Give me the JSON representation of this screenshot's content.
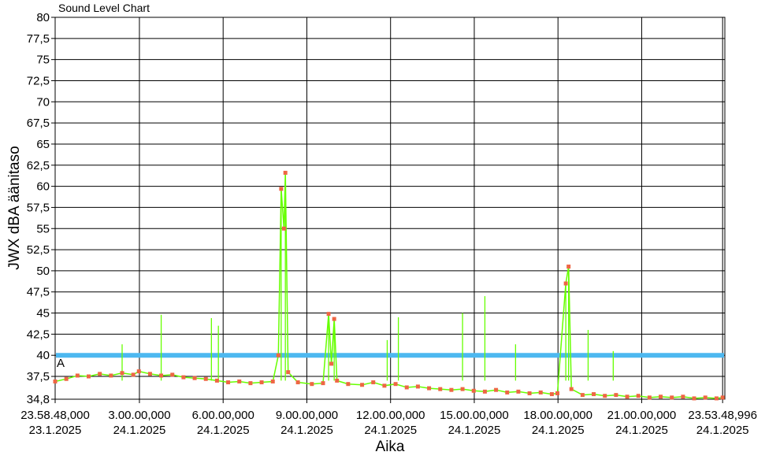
{
  "chart_data": {
    "type": "line",
    "title": "Sound Level Chart",
    "xlabel": "Aika",
    "ylabel": "JWX dBA äänitaso",
    "ylim": [
      34.8,
      80
    ],
    "y_ticks": [
      "34,8",
      "37,5",
      "40",
      "42,5",
      "45",
      "47,5",
      "50",
      "52,5",
      "55",
      "57,5",
      "60",
      "62,5",
      "65",
      "67,5",
      "70",
      "72,5",
      "75",
      "77,5",
      "80"
    ],
    "y_tick_values": [
      34.8,
      37.5,
      40,
      42.5,
      45,
      47.5,
      50,
      52.5,
      55,
      57.5,
      60,
      62.5,
      65,
      67.5,
      70,
      72.5,
      75,
      77.5,
      80
    ],
    "x_range_hours": [
      0,
      24.0
    ],
    "x_ticks": [
      {
        "time": "23.58.48,000",
        "date": "23.1.2025",
        "hours": 0.0
      },
      {
        "time": "3.00.00,000",
        "date": "24.1.2025",
        "hours": 3.02
      },
      {
        "time": "6.00.00,000",
        "date": "24.1.2025",
        "hours": 6.02
      },
      {
        "time": "9.00.00,000",
        "date": "24.1.2025",
        "hours": 9.02
      },
      {
        "time": "12.00.00,000",
        "date": "24.1.2025",
        "hours": 12.02
      },
      {
        "time": "15.00.00,000",
        "date": "24.1.2025",
        "hours": 15.02
      },
      {
        "time": "18.00.00,000",
        "date": "24.1.2025",
        "hours": 18.02
      },
      {
        "time": "21.00.00,000",
        "date": "24.1.2025",
        "hours": 21.02
      },
      {
        "time": "23.53.48,996",
        "date": "24.1.2025",
        "hours": 23.92
      }
    ],
    "threshold": {
      "value": 40,
      "color": "#4db8f0"
    },
    "marker_label": "A",
    "series": [
      {
        "color": "#66ff00",
        "points": [
          [
            0.0,
            36.9
          ],
          [
            0.4,
            37.2
          ],
          [
            0.8,
            37.6
          ],
          [
            1.2,
            37.5
          ],
          [
            1.6,
            37.8
          ],
          [
            2.0,
            37.6
          ],
          [
            2.4,
            37.9
          ],
          [
            2.8,
            37.7
          ],
          [
            3.0,
            38.1
          ],
          [
            3.4,
            37.8
          ],
          [
            3.8,
            37.6
          ],
          [
            4.2,
            37.7
          ],
          [
            4.6,
            37.4
          ],
          [
            5.0,
            37.3
          ],
          [
            5.4,
            37.2
          ],
          [
            5.8,
            37.0
          ],
          [
            6.2,
            36.8
          ],
          [
            6.6,
            36.9
          ],
          [
            7.0,
            36.7
          ],
          [
            7.4,
            36.8
          ],
          [
            7.8,
            36.9
          ],
          [
            8.0,
            40.0
          ],
          [
            8.1,
            59.7
          ],
          [
            8.2,
            55.0
          ],
          [
            8.25,
            61.6
          ],
          [
            8.35,
            38.0
          ],
          [
            8.7,
            36.8
          ],
          [
            9.2,
            36.6
          ],
          [
            9.6,
            36.7
          ],
          [
            9.8,
            44.9
          ],
          [
            9.9,
            39.0
          ],
          [
            10.0,
            44.3
          ],
          [
            10.1,
            37.0
          ],
          [
            10.5,
            36.6
          ],
          [
            11.0,
            36.5
          ],
          [
            11.4,
            36.8
          ],
          [
            11.8,
            36.4
          ],
          [
            12.2,
            36.6
          ],
          [
            12.6,
            36.2
          ],
          [
            13.0,
            36.3
          ],
          [
            13.4,
            36.1
          ],
          [
            13.8,
            36.0
          ],
          [
            14.2,
            35.9
          ],
          [
            14.6,
            36.0
          ],
          [
            15.0,
            35.8
          ],
          [
            15.4,
            35.7
          ],
          [
            15.8,
            35.9
          ],
          [
            16.2,
            35.6
          ],
          [
            16.6,
            35.7
          ],
          [
            17.0,
            35.5
          ],
          [
            17.4,
            35.6
          ],
          [
            17.8,
            35.4
          ],
          [
            18.0,
            35.5
          ],
          [
            18.3,
            48.5
          ],
          [
            18.4,
            50.5
          ],
          [
            18.5,
            36.0
          ],
          [
            18.9,
            35.3
          ],
          [
            19.3,
            35.4
          ],
          [
            19.7,
            35.2
          ],
          [
            20.1,
            35.3
          ],
          [
            20.5,
            35.1
          ],
          [
            20.9,
            35.2
          ],
          [
            21.3,
            35.0
          ],
          [
            21.7,
            35.1
          ],
          [
            22.1,
            35.0
          ],
          [
            22.5,
            35.1
          ],
          [
            22.9,
            34.9
          ],
          [
            23.3,
            35.0
          ],
          [
            23.7,
            34.9
          ],
          [
            23.92,
            35.0
          ]
        ]
      }
    ],
    "peaks": [
      {
        "x": 2.4,
        "y": 41.3
      },
      {
        "x": 3.8,
        "y": 44.8
      },
      {
        "x": 5.6,
        "y": 44.4
      },
      {
        "x": 5.85,
        "y": 43.5
      },
      {
        "x": 8.1,
        "y": 59.7
      },
      {
        "x": 8.25,
        "y": 61.6
      },
      {
        "x": 9.8,
        "y": 44.9
      },
      {
        "x": 10.0,
        "y": 44.3
      },
      {
        "x": 11.9,
        "y": 41.8
      },
      {
        "x": 12.3,
        "y": 44.5
      },
      {
        "x": 14.6,
        "y": 45.0
      },
      {
        "x": 15.4,
        "y": 47.0
      },
      {
        "x": 16.5,
        "y": 41.3
      },
      {
        "x": 18.3,
        "y": 48.5
      },
      {
        "x": 18.4,
        "y": 50.5
      },
      {
        "x": 19.1,
        "y": 43.0
      },
      {
        "x": 20.0,
        "y": 40.5
      }
    ]
  }
}
